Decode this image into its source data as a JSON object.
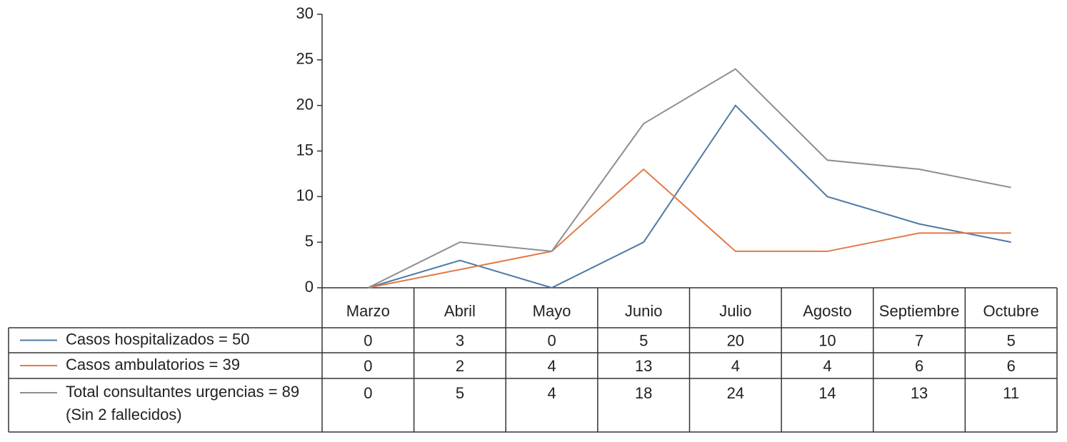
{
  "chart_data": {
    "type": "line",
    "categories": [
      "Marzo",
      "Abril",
      "Mayo",
      "Junio",
      "Julio",
      "Agosto",
      "Septiembre",
      "Octubre"
    ],
    "series": [
      {
        "name": "Casos hospitalizados = 50",
        "color": "#4f79a6",
        "values": [
          0,
          3,
          0,
          5,
          20,
          10,
          7,
          5
        ]
      },
      {
        "name": "Casos ambulatorios = 39",
        "color": "#e07b47",
        "values": [
          0,
          2,
          4,
          13,
          4,
          4,
          6,
          6
        ]
      },
      {
        "name": "Total consultantes urgencias = 89",
        "name_note": "(Sin 2 fallecidos)",
        "color": "#8e8e8e",
        "values": [
          0,
          5,
          4,
          18,
          24,
          14,
          13,
          11
        ]
      }
    ],
    "ylim": [
      0,
      30
    ],
    "yticks": [
      0,
      5,
      10,
      15,
      20,
      25,
      30
    ],
    "grid": false
  }
}
